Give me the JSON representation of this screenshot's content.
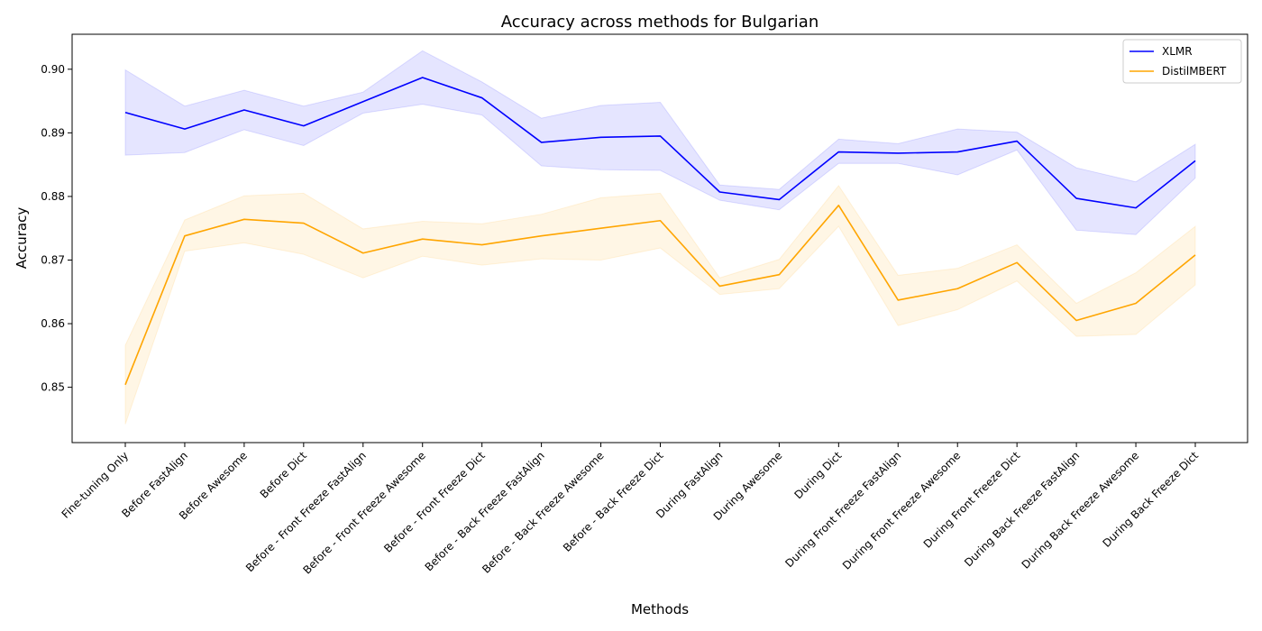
{
  "chart_data": {
    "type": "line",
    "title": "Accuracy across methods for Bulgarian",
    "xlabel": "Methods",
    "ylabel": "Accuracy",
    "ylim": [
      0.8413,
      0.9055
    ],
    "yticks": [
      0.85,
      0.86,
      0.87,
      0.88,
      0.89,
      0.9
    ],
    "ytick_labels": [
      "0.85",
      "0.86",
      "0.87",
      "0.88",
      "0.89",
      "0.90"
    ],
    "grid": false,
    "legend_position": "top-right",
    "categories": [
      "Fine-tuning Only",
      "Before FastAlign",
      "Before Awesome",
      "Before Dict",
      "Before - Front Freeze FastAlign",
      "Before - Front Freeze Awesome",
      "Before - Front Freeze Dict",
      "Before - Back Freeze FastAlign",
      "Before - Back Freeze Awesome",
      "Before - Back Freeze Dict",
      "During FastAlign",
      "During Awesome",
      "During Dict",
      "During Front Freeze FastAlign",
      "During Front Freeze Awesome",
      "During Front Freeze Dict",
      "During Back Freeze FastAlign",
      "During Back Freeze Awesome",
      "During Back Freeze Dict"
    ],
    "series": [
      {
        "name": "XLMR",
        "color": "#0000ff",
        "band_color": "#0000ff",
        "values": [
          0.8932,
          0.8906,
          0.8936,
          0.8911,
          0.8949,
          0.8987,
          0.8955,
          0.8885,
          0.8893,
          0.8895,
          0.8807,
          0.8795,
          0.887,
          0.8868,
          0.887,
          0.8887,
          0.8797,
          0.8782,
          0.8856
        ],
        "lower": [
          0.8865,
          0.8869,
          0.8905,
          0.888,
          0.8931,
          0.8945,
          0.8928,
          0.8848,
          0.8842,
          0.8841,
          0.8794,
          0.8779,
          0.8852,
          0.8852,
          0.8834,
          0.8873,
          0.8747,
          0.874,
          0.8829
        ],
        "upper": [
          0.8999,
          0.8942,
          0.8967,
          0.8942,
          0.8964,
          0.9029,
          0.898,
          0.8923,
          0.8943,
          0.8948,
          0.8818,
          0.8811,
          0.889,
          0.8883,
          0.8906,
          0.8901,
          0.8845,
          0.8823,
          0.8882
        ]
      },
      {
        "name": "DistilMBERT",
        "color": "#ffa500",
        "band_color": "#ffa500",
        "values": [
          0.8504,
          0.8738,
          0.8764,
          0.8758,
          0.8711,
          0.8733,
          0.8724,
          0.8738,
          0.875,
          0.8762,
          0.8659,
          0.8677,
          0.8786,
          0.8637,
          0.8655,
          0.8696,
          0.8605,
          0.8632,
          0.8708
        ],
        "lower": [
          0.8442,
          0.8714,
          0.8727,
          0.8709,
          0.8672,
          0.8706,
          0.8692,
          0.8702,
          0.87,
          0.8719,
          0.8646,
          0.8655,
          0.8753,
          0.8597,
          0.8622,
          0.8667,
          0.858,
          0.8583,
          0.8661
        ],
        "upper": [
          0.8566,
          0.8763,
          0.8801,
          0.8805,
          0.8749,
          0.8761,
          0.8757,
          0.8772,
          0.8798,
          0.8805,
          0.8672,
          0.8701,
          0.8817,
          0.8676,
          0.8687,
          0.8724,
          0.8632,
          0.868,
          0.8753
        ]
      }
    ]
  }
}
